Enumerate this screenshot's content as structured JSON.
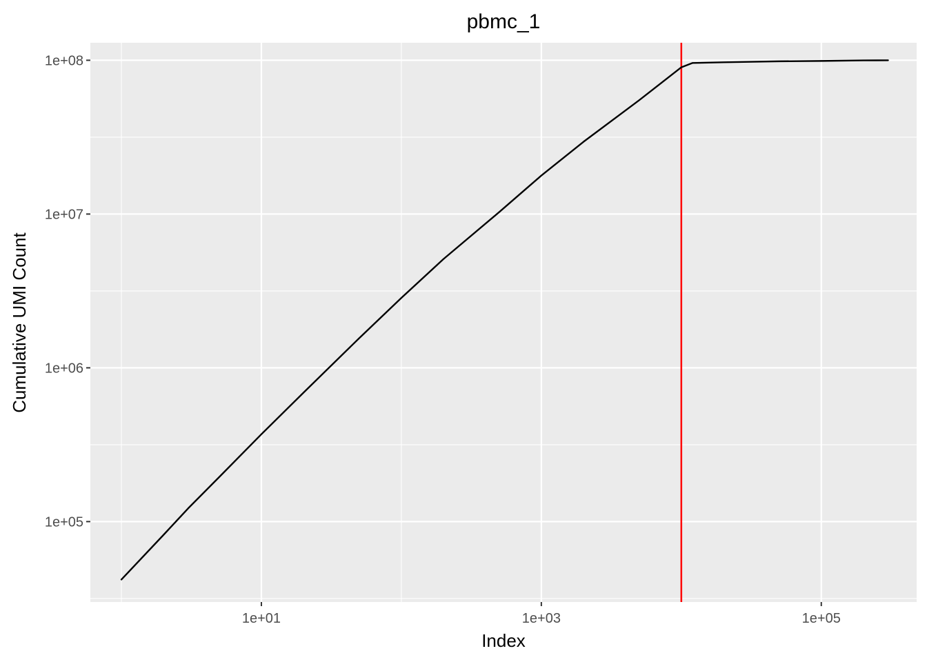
{
  "chart_data": {
    "type": "line",
    "title": "pbmc_1",
    "xlabel": "Index",
    "ylabel": "Cumulative UMI Count",
    "x_scale": "log10",
    "y_scale": "log10",
    "xlim": [
      0.6,
      480000
    ],
    "ylim": [
      30000,
      130000000
    ],
    "x_ticks": [
      {
        "value": 10,
        "label": "1e+01"
      },
      {
        "value": 1000,
        "label": "1e+03"
      },
      {
        "value": 100000,
        "label": "1e+05"
      }
    ],
    "x_minor_ticks": [
      1,
      100,
      10000,
      1000000
    ],
    "y_ticks": [
      {
        "value": 100000,
        "label": "1e+05"
      },
      {
        "value": 1000000,
        "label": "1e+06"
      },
      {
        "value": 10000000,
        "label": "1e+07"
      },
      {
        "value": 100000000,
        "label": "1e+08"
      }
    ],
    "y_minor_ticks": [
      31623,
      316228,
      3162278,
      31622777
    ],
    "grid": true,
    "legend": "none",
    "series": [
      {
        "color": "#000000",
        "x": [
          1,
          2,
          3,
          5,
          10,
          20,
          50,
          100,
          200,
          500,
          1000,
          2000,
          5000,
          10000,
          12000,
          20000,
          50000,
          100000,
          200000,
          300000
        ],
        "y": [
          42000,
          82000,
          122000,
          195000,
          370000,
          690000,
          1560000,
          2850000,
          5100000,
          10300000,
          17800000,
          29500000,
          55000000,
          90000000,
          96000000,
          97000000,
          98500000,
          99000000,
          99800000,
          100000000
        ]
      }
    ],
    "vlines": [
      {
        "x": 10000,
        "color": "#ff0000"
      }
    ]
  }
}
